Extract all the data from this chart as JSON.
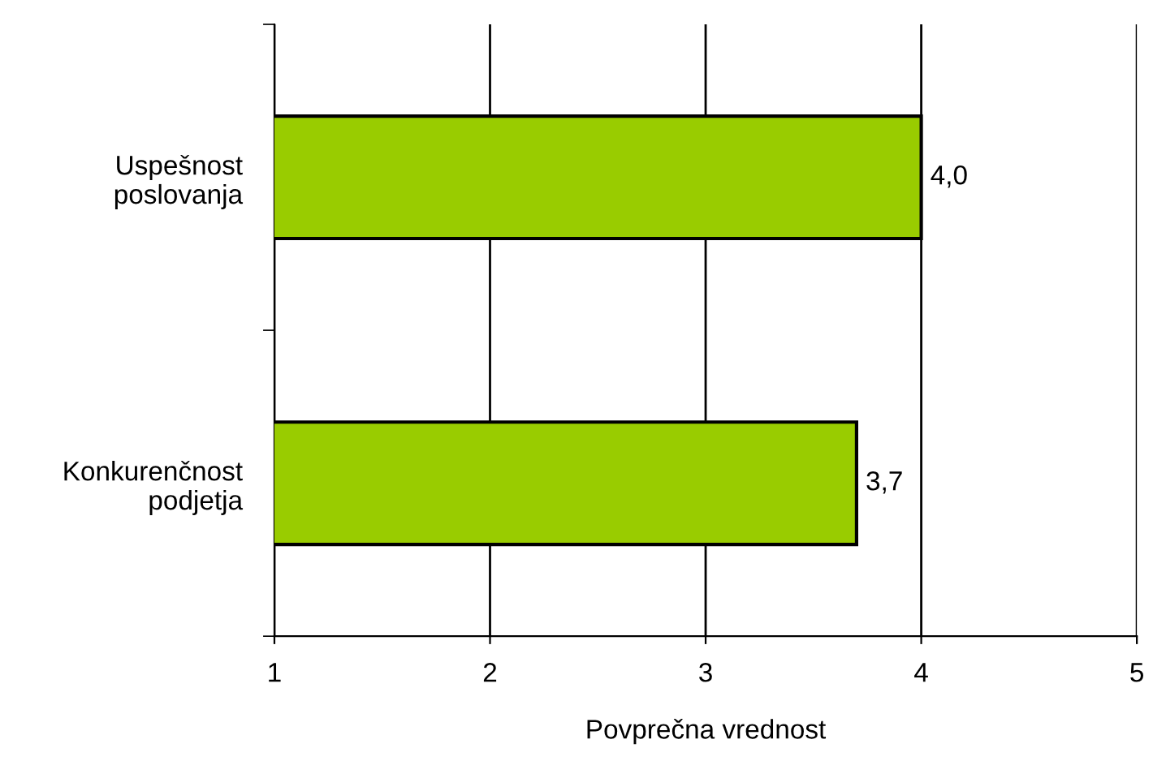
{
  "chart_data": {
    "type": "bar",
    "orientation": "horizontal",
    "xlabel": "Povprečna vrednost",
    "categories": [
      "Uspešnost\nposlovanja",
      "Konkurenčnost\npodjetja"
    ],
    "values": [
      4.0,
      3.7
    ],
    "value_labels": [
      "4,0",
      "3,7"
    ],
    "color": "#99cc00",
    "xlim": [
      1,
      5
    ],
    "xticks": [
      1,
      2,
      3,
      4,
      5
    ],
    "grid": "x"
  }
}
